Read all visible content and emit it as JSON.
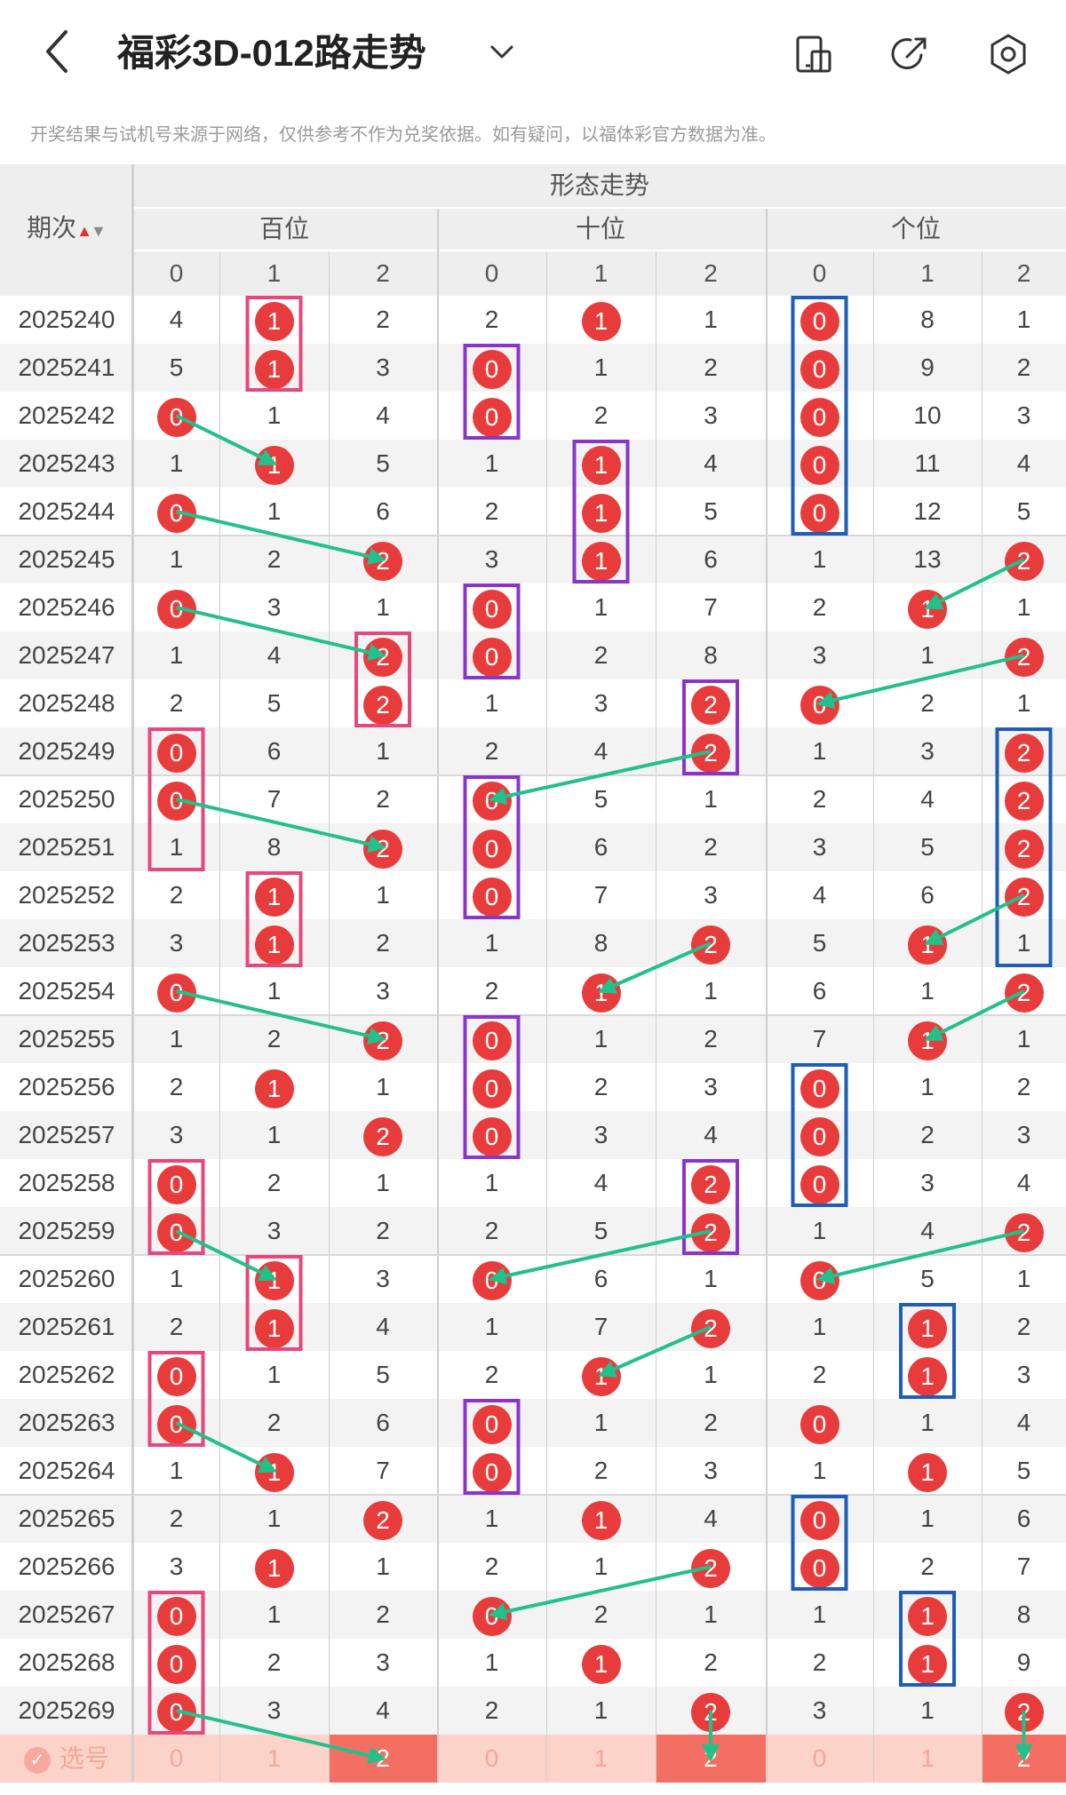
{
  "header": {
    "title": "福彩3D-012路走势",
    "back_icon": "chevron-left-icon",
    "dropdown_icon": "chevron-down-icon",
    "actions": [
      "phone-layout-icon",
      "share-icon",
      "settings-icon"
    ]
  },
  "notice": "开奖结果与试机号来源于网络，仅供参考不作为兑奖依据。如有疑问，以福体彩官方数据为准。",
  "table": {
    "period_header": "期次",
    "section_header": "形态走势",
    "groups": [
      "百位",
      "十位",
      "个位"
    ],
    "sub_headers": [
      "0",
      "1",
      "2"
    ],
    "rows": [
      {
        "period": "2025240",
        "v": [
          "4",
          "1",
          "2",
          "2",
          "1",
          "1",
          "0",
          "8",
          "1"
        ],
        "hit": [
          1,
          4,
          6
        ]
      },
      {
        "period": "2025241",
        "v": [
          "5",
          "1",
          "3",
          "0",
          "1",
          "2",
          "0",
          "9",
          "2"
        ],
        "hit": [
          1,
          3,
          6
        ]
      },
      {
        "period": "2025242",
        "v": [
          "0",
          "1",
          "4",
          "0",
          "2",
          "3",
          "0",
          "10",
          "3"
        ],
        "hit": [
          0,
          3,
          6
        ]
      },
      {
        "period": "2025243",
        "v": [
          "1",
          "1",
          "5",
          "1",
          "1",
          "4",
          "0",
          "11",
          "4"
        ],
        "hit": [
          1,
          4,
          6
        ]
      },
      {
        "period": "2025244",
        "v": [
          "0",
          "1",
          "6",
          "2",
          "1",
          "5",
          "0",
          "12",
          "5"
        ],
        "hit": [
          0,
          4,
          6
        ]
      },
      {
        "period": "2025245",
        "v": [
          "1",
          "2",
          "2",
          "3",
          "1",
          "6",
          "1",
          "13",
          "2"
        ],
        "hit": [
          2,
          4,
          8
        ]
      },
      {
        "period": "2025246",
        "v": [
          "0",
          "3",
          "1",
          "0",
          "1",
          "7",
          "2",
          "1",
          "1"
        ],
        "hit": [
          0,
          3,
          7
        ]
      },
      {
        "period": "2025247",
        "v": [
          "1",
          "4",
          "2",
          "0",
          "2",
          "8",
          "3",
          "1",
          "2"
        ],
        "hit": [
          2,
          3,
          8
        ]
      },
      {
        "period": "2025248",
        "v": [
          "2",
          "5",
          "2",
          "1",
          "3",
          "2",
          "0",
          "2",
          "1"
        ],
        "hit": [
          2,
          5,
          6
        ]
      },
      {
        "period": "2025249",
        "v": [
          "0",
          "6",
          "1",
          "2",
          "4",
          "2",
          "1",
          "3",
          "2"
        ],
        "hit": [
          0,
          5,
          8
        ]
      },
      {
        "period": "2025250",
        "v": [
          "0",
          "7",
          "2",
          "0",
          "5",
          "1",
          "2",
          "4",
          "2"
        ],
        "hit": [
          0,
          3,
          8
        ]
      },
      {
        "period": "2025251",
        "v": [
          "1",
          "8",
          "2",
          "0",
          "6",
          "2",
          "3",
          "5",
          "2"
        ],
        "hit": [
          2,
          3,
          8
        ]
      },
      {
        "period": "2025252",
        "v": [
          "2",
          "1",
          "1",
          "0",
          "7",
          "3",
          "4",
          "6",
          "2"
        ],
        "hit": [
          1,
          3,
          8
        ]
      },
      {
        "period": "2025253",
        "v": [
          "3",
          "1",
          "2",
          "1",
          "8",
          "2",
          "5",
          "1",
          "1"
        ],
        "hit": [
          1,
          5,
          7
        ]
      },
      {
        "period": "2025254",
        "v": [
          "0",
          "1",
          "3",
          "2",
          "1",
          "1",
          "6",
          "1",
          "2"
        ],
        "hit": [
          0,
          4,
          8
        ]
      },
      {
        "period": "2025255",
        "v": [
          "1",
          "2",
          "2",
          "0",
          "1",
          "2",
          "7",
          "1",
          "1"
        ],
        "hit": [
          2,
          3,
          7
        ]
      },
      {
        "period": "2025256",
        "v": [
          "2",
          "1",
          "1",
          "0",
          "2",
          "3",
          "0",
          "1",
          "2"
        ],
        "hit": [
          1,
          3,
          6
        ]
      },
      {
        "period": "2025257",
        "v": [
          "3",
          "1",
          "2",
          "0",
          "3",
          "4",
          "0",
          "2",
          "3"
        ],
        "hit": [
          2,
          3,
          6
        ]
      },
      {
        "period": "2025258",
        "v": [
          "0",
          "2",
          "1",
          "1",
          "4",
          "2",
          "0",
          "3",
          "4"
        ],
        "hit": [
          0,
          5,
          6
        ]
      },
      {
        "period": "2025259",
        "v": [
          "0",
          "3",
          "2",
          "2",
          "5",
          "2",
          "1",
          "4",
          "2"
        ],
        "hit": [
          0,
          5,
          8
        ]
      },
      {
        "period": "2025260",
        "v": [
          "1",
          "1",
          "3",
          "0",
          "6",
          "1",
          "0",
          "5",
          "1"
        ],
        "hit": [
          1,
          3,
          6
        ]
      },
      {
        "period": "2025261",
        "v": [
          "2",
          "1",
          "4",
          "1",
          "7",
          "2",
          "1",
          "1",
          "2"
        ],
        "hit": [
          1,
          5,
          7
        ]
      },
      {
        "period": "2025262",
        "v": [
          "0",
          "1",
          "5",
          "2",
          "1",
          "1",
          "2",
          "1",
          "3"
        ],
        "hit": [
          0,
          4,
          7
        ]
      },
      {
        "period": "2025263",
        "v": [
          "0",
          "2",
          "6",
          "0",
          "1",
          "2",
          "0",
          "1",
          "4"
        ],
        "hit": [
          0,
          3,
          6
        ]
      },
      {
        "period": "2025264",
        "v": [
          "1",
          "1",
          "7",
          "0",
          "2",
          "3",
          "1",
          "1",
          "5"
        ],
        "hit": [
          1,
          3,
          7
        ]
      },
      {
        "period": "2025265",
        "v": [
          "2",
          "1",
          "2",
          "1",
          "1",
          "4",
          "0",
          "1",
          "6"
        ],
        "hit": [
          2,
          4,
          6
        ]
      },
      {
        "period": "2025266",
        "v": [
          "3",
          "1",
          "1",
          "2",
          "1",
          "2",
          "0",
          "2",
          "7"
        ],
        "hit": [
          1,
          5,
          6
        ]
      },
      {
        "period": "2025267",
        "v": [
          "0",
          "1",
          "2",
          "0",
          "2",
          "1",
          "1",
          "1",
          "8"
        ],
        "hit": [
          0,
          3,
          7
        ]
      },
      {
        "period": "2025268",
        "v": [
          "0",
          "2",
          "3",
          "1",
          "1",
          "2",
          "2",
          "1",
          "9"
        ],
        "hit": [
          0,
          4,
          7
        ]
      },
      {
        "period": "2025269",
        "v": [
          "0",
          "3",
          "4",
          "2",
          "1",
          "2",
          "3",
          "1",
          "2"
        ],
        "hit": [
          0,
          5,
          8
        ]
      }
    ],
    "select_row": {
      "label": "选号",
      "values": [
        "0",
        "1",
        "2",
        "0",
        "1",
        "2",
        "0",
        "1",
        "2"
      ],
      "on": [
        2,
        5,
        8
      ]
    }
  },
  "colors": {
    "ball": "#e83b3b",
    "box_pink": "#e8477a",
    "box_purple": "#8a35c9",
    "box_blue": "#1f5db8",
    "arrow": "#22c08a",
    "select_bg": "#fcd3c9",
    "select_on": "#f46f63"
  }
}
